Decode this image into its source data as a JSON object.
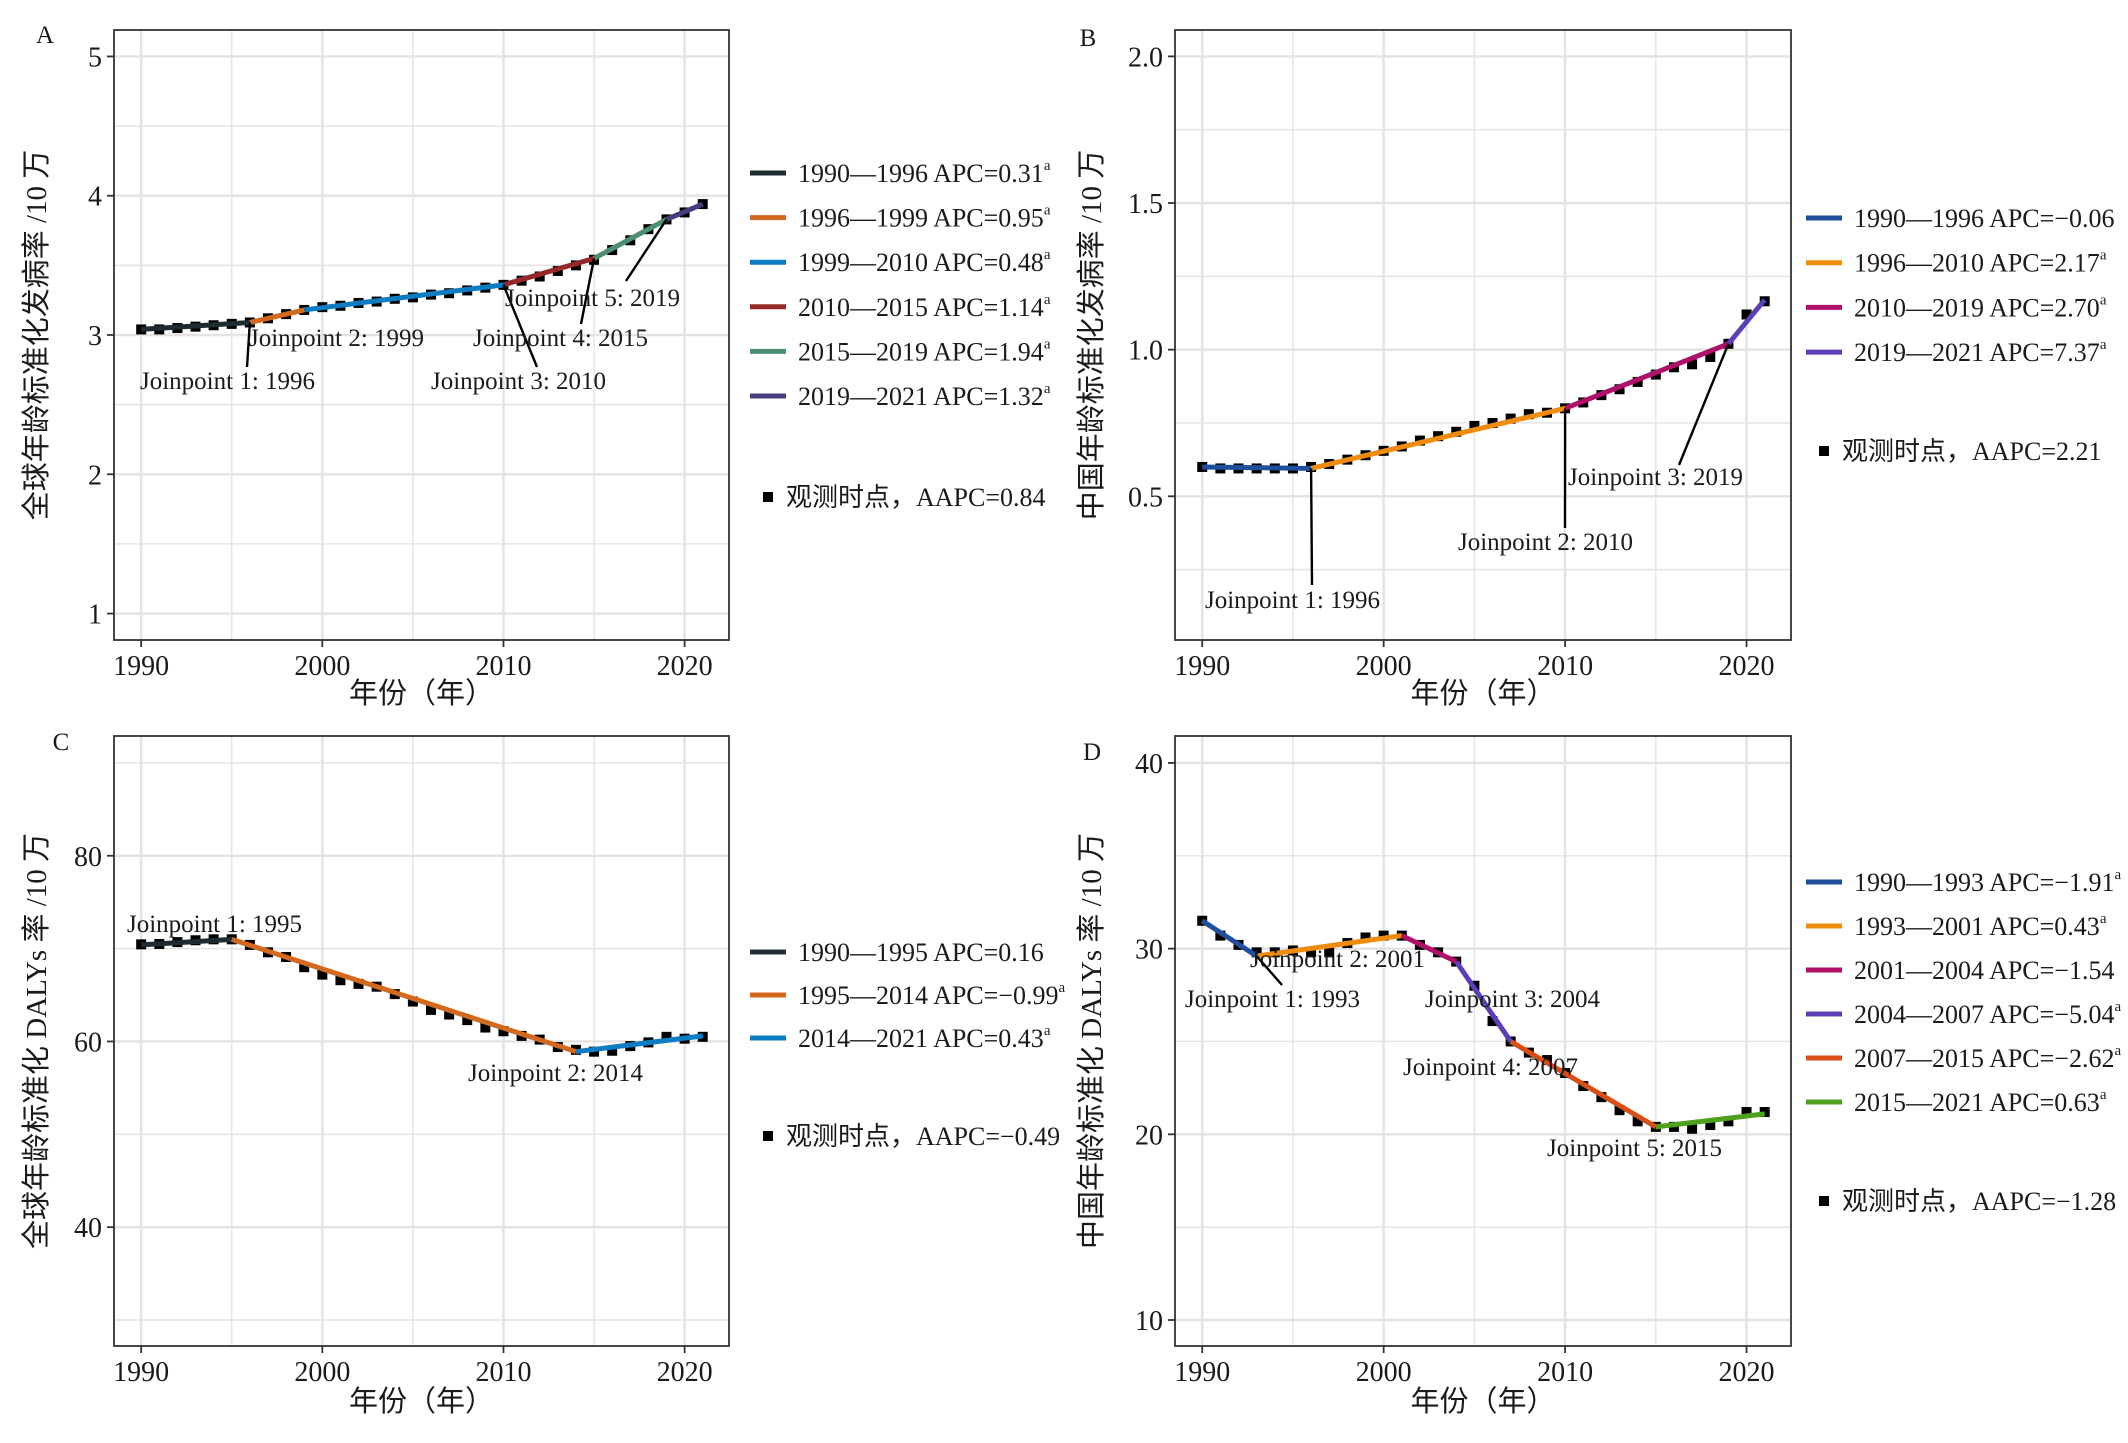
{
  "chart_data": [
    {
      "panel": "A",
      "type": "line",
      "xlabel": "年份（年）",
      "ylabel": "全球年龄标准化发病率 /10 万",
      "xlim": [
        1988.5,
        2022.45
      ],
      "ylim": [
        0.81,
        5.19
      ],
      "xticks": [
        1990,
        2000,
        2010,
        2020
      ],
      "xticklabels": [
        "1990",
        "2000",
        "2010",
        "2020"
      ],
      "yticks": [
        1,
        2,
        3,
        4,
        5
      ],
      "yticklabels": [
        "1",
        "2",
        "3",
        "4",
        "5"
      ],
      "grid": true,
      "legend": "right",
      "x": [
        1990,
        1991,
        1992,
        1993,
        1994,
        1995,
        1996,
        1997,
        1998,
        1999,
        2000,
        2001,
        2002,
        2003,
        2004,
        2005,
        2006,
        2007,
        2008,
        2009,
        2010,
        2011,
        2012,
        2013,
        2014,
        2015,
        2016,
        2017,
        2018,
        2019,
        2020,
        2021
      ],
      "observed": [
        3.04,
        3.04,
        3.05,
        3.06,
        3.07,
        3.08,
        3.09,
        3.12,
        3.15,
        3.18,
        3.2,
        3.21,
        3.23,
        3.24,
        3.26,
        3.27,
        3.29,
        3.3,
        3.32,
        3.34,
        3.36,
        3.39,
        3.42,
        3.46,
        3.5,
        3.54,
        3.61,
        3.68,
        3.76,
        3.83,
        3.88,
        3.94
      ],
      "observed_label": "观测时点，AAPC=0.84",
      "segments": [
        {
          "label": "1990—1996 APC=0.31",
          "note": "a",
          "color": "#1e2b30",
          "from": 1990,
          "to": 1996,
          "y_from": 3.04,
          "y_to": 3.09
        },
        {
          "label": "1996—1999 APC=0.95",
          "note": "a",
          "color": "#d2691e",
          "from": 1996,
          "to": 1999,
          "y_from": 3.09,
          "y_to": 3.18
        },
        {
          "label": "1999—2010 APC=0.48",
          "note": "a",
          "color": "#0e7cc2",
          "from": 1999,
          "to": 2010,
          "y_from": 3.18,
          "y_to": 3.36
        },
        {
          "label": "2010—2015 APC=1.14",
          "note": "a",
          "color": "#952828",
          "from": 2010,
          "to": 2015,
          "y_from": 3.36,
          "y_to": 3.55
        },
        {
          "label": "2015—2019 APC=1.94",
          "note": "a",
          "color": "#4e8e72",
          "from": 2015,
          "to": 2019,
          "y_from": 3.55,
          "y_to": 3.83
        },
        {
          "label": "2019—2021 APC=1.32",
          "note": "a",
          "color": "#463d7c",
          "from": 2019,
          "to": 2021,
          "y_from": 3.83,
          "y_to": 3.94
        }
      ],
      "joinpoints": [
        "Joinpoint 1: 1996",
        "Joinpoint 2: 1999",
        "Joinpoint 3: 2010",
        "Joinpoint 4: 2015",
        "Joinpoint 5: 2019"
      ]
    },
    {
      "panel": "B",
      "type": "line",
      "xlabel": "年份（年）",
      "ylabel": "中国年龄标准化发病率 /10 万",
      "xlim": [
        1988.5,
        2022.45
      ],
      "ylim": [
        0.01,
        2.09
      ],
      "xticks": [
        1990,
        2000,
        2010,
        2020
      ],
      "xticklabels": [
        "1990",
        "2000",
        "2010",
        "2020"
      ],
      "yticks": [
        0.5,
        1.0,
        1.5,
        2.0
      ],
      "yticklabels": [
        "0.5",
        "1.0",
        "1.5",
        "2.0"
      ],
      "grid": true,
      "legend": "right",
      "x": [
        1990,
        1991,
        1992,
        1993,
        1994,
        1995,
        1996,
        1997,
        1998,
        1999,
        2000,
        2001,
        2002,
        2003,
        2004,
        2005,
        2006,
        2007,
        2008,
        2009,
        2010,
        2011,
        2012,
        2013,
        2014,
        2015,
        2016,
        2017,
        2018,
        2019,
        2020,
        2021
      ],
      "observed": [
        0.6,
        0.595,
        0.595,
        0.595,
        0.595,
        0.595,
        0.6,
        0.61,
        0.625,
        0.64,
        0.655,
        0.67,
        0.69,
        0.705,
        0.72,
        0.74,
        0.75,
        0.765,
        0.78,
        0.785,
        0.8,
        0.82,
        0.845,
        0.865,
        0.89,
        0.915,
        0.94,
        0.95,
        0.975,
        1.02,
        1.12,
        1.165
      ],
      "observed_label": "观测时点，AAPC=2.21",
      "segments": [
        {
          "label": "1990—1996 APC=−0.06",
          "note": "",
          "color": "#1f4e9c",
          "from": 1990,
          "to": 1996,
          "y_from": 0.6,
          "y_to": 0.595
        },
        {
          "label": "1996—2010 APC=2.17",
          "note": "a",
          "color": "#ef8c0f",
          "from": 1996,
          "to": 2010,
          "y_from": 0.595,
          "y_to": 0.8
        },
        {
          "label": "2010—2019 APC=2.70",
          "note": "a",
          "color": "#b0106a",
          "from": 2010,
          "to": 2019,
          "y_from": 0.8,
          "y_to": 1.02
        },
        {
          "label": "2019—2021 APC=7.37",
          "note": "a",
          "color": "#5a3fb8",
          "from": 2019,
          "to": 2021,
          "y_from": 1.02,
          "y_to": 1.17
        }
      ],
      "joinpoints": [
        "Joinpoint 1: 1996",
        "Joinpoint 2: 2010",
        "Joinpoint 3: 2019"
      ]
    },
    {
      "panel": "C",
      "type": "line",
      "xlabel": "年份（年）",
      "ylabel": "全球年龄标准化 DALYs 率 /10 万",
      "xlim": [
        1988.5,
        2022.45
      ],
      "ylim": [
        27.2,
        92.9
      ],
      "xticks": [
        1990,
        2000,
        2010,
        2020
      ],
      "xticklabels": [
        "1990",
        "2000",
        "2010",
        "2020"
      ],
      "yticks": [
        40,
        60,
        80
      ],
      "yticklabels": [
        "40",
        "60",
        "80"
      ],
      "grid": true,
      "legend": "right",
      "x": [
        1990,
        1991,
        1992,
        1993,
        1994,
        1995,
        1996,
        1997,
        1998,
        1999,
        2000,
        2001,
        2002,
        2003,
        2004,
        2005,
        2006,
        2007,
        2008,
        2009,
        2010,
        2011,
        2012,
        2013,
        2014,
        2015,
        2016,
        2017,
        2018,
        2019,
        2020,
        2021
      ],
      "observed": [
        70.46,
        70.5,
        70.7,
        70.9,
        71.0,
        71.0,
        70.4,
        69.6,
        69.1,
        68.0,
        67.2,
        66.6,
        66.2,
        65.9,
        65.1,
        64.3,
        63.4,
        62.9,
        62.3,
        61.5,
        61.1,
        60.6,
        60.2,
        59.4,
        59.1,
        58.9,
        59.0,
        59.5,
        59.9,
        60.5,
        60.3,
        60.5
      ],
      "observed_label": "观测时点，AAPC=−0.49",
      "segments": [
        {
          "label": "1990—1995 APC=0.16",
          "note": "",
          "color": "#1e2b30",
          "from": 1990,
          "to": 1995,
          "y_from": 70.4,
          "y_to": 71.0
        },
        {
          "label": "1995—2014 APC=−0.99",
          "note": "a",
          "color": "#d2691e",
          "from": 1995,
          "to": 2014,
          "y_from": 71.0,
          "y_to": 58.9
        },
        {
          "label": "2014—2021 APC=0.43",
          "note": "a",
          "color": "#0e7cc2",
          "from": 2014,
          "to": 2021,
          "y_from": 58.9,
          "y_to": 60.6
        }
      ],
      "joinpoints": [
        "Joinpoint 1: 1995",
        "Joinpoint 2: 2014"
      ]
    },
    {
      "panel": "D",
      "type": "line",
      "xlabel": "年份（年）",
      "ylabel": "中国年龄标准化 DALYs 率 /10 万",
      "xlim": [
        1988.5,
        2022.45
      ],
      "ylim": [
        8.6,
        41.45
      ],
      "xticks": [
        1990,
        2000,
        2010,
        2020
      ],
      "xticklabels": [
        "1990",
        "2000",
        "2010",
        "2020"
      ],
      "yticks": [
        10,
        20,
        30,
        40
      ],
      "yticklabels": [
        "10",
        "20",
        "30",
        "40"
      ],
      "grid": true,
      "legend": "right",
      "x": [
        1990,
        1991,
        1992,
        1993,
        1994,
        1995,
        1996,
        1997,
        1998,
        1999,
        2000,
        2001,
        2002,
        2003,
        2004,
        2005,
        2006,
        2007,
        2008,
        2009,
        2010,
        2011,
        2012,
        2013,
        2014,
        2015,
        2016,
        2017,
        2018,
        2019,
        2020,
        2021
      ],
      "observed": [
        31.5,
        30.7,
        30.2,
        29.8,
        29.8,
        29.9,
        29.8,
        29.8,
        30.3,
        30.6,
        30.7,
        30.7,
        30.2,
        29.8,
        29.3,
        28.0,
        26.1,
        25.0,
        24.4,
        24.0,
        23.3,
        22.6,
        22.0,
        21.3,
        20.7,
        20.4,
        20.4,
        20.3,
        20.5,
        20.7,
        21.2,
        21.2
      ],
      "observed_label": "观测时点，AAPC=−1.28",
      "segments": [
        {
          "label": "1990—1993 APC=−1.91",
          "note": "a",
          "color": "#1f4e9c",
          "from": 1990,
          "to": 1993,
          "y_from": 31.5,
          "y_to": 29.6
        },
        {
          "label": "1993—2001 APC=0.43",
          "note": "a",
          "color": "#ef8c0f",
          "from": 1993,
          "to": 2001,
          "y_from": 29.6,
          "y_to": 30.7
        },
        {
          "label": "2001—2004 APC=−1.54",
          "note": "",
          "color": "#b0106a",
          "from": 2001,
          "to": 2004,
          "y_from": 30.7,
          "y_to": 29.3
        },
        {
          "label": "2004—2007 APC=−5.04",
          "note": "a",
          "color": "#5a3fb8",
          "from": 2004,
          "to": 2007,
          "y_from": 29.3,
          "y_to": 25.0
        },
        {
          "label": "2007—2015 APC=−2.62",
          "note": "a",
          "color": "#d84e16",
          "from": 2007,
          "to": 2015,
          "y_from": 25.0,
          "y_to": 20.4
        },
        {
          "label": "2015—2021 APC=0.63",
          "note": "a",
          "color": "#4ea11c",
          "from": 2015,
          "to": 2021,
          "y_from": 20.4,
          "y_to": 21.1
        }
      ],
      "joinpoints": [
        "Joinpoint 1: 1993",
        "Joinpoint 2: 2001",
        "Joinpoint 3: 2004",
        "Joinpoint 4: 2007",
        "Joinpoint 5: 2015"
      ]
    }
  ]
}
